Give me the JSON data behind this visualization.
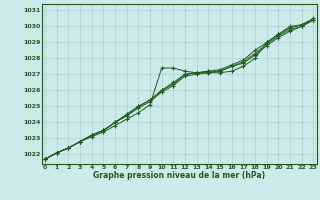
{
  "xlabel": "Graphe pression niveau de la mer (hPa)",
  "background_color": "#cceaea",
  "grid_color": "#b8d8d8",
  "line_color": "#1e5c1e",
  "xlim": [
    -0.3,
    23.3
  ],
  "ylim": [
    1021.4,
    1031.4
  ],
  "yticks": [
    1022,
    1023,
    1024,
    1025,
    1026,
    1027,
    1028,
    1029,
    1030,
    1031
  ],
  "xticks": [
    0,
    1,
    2,
    3,
    4,
    5,
    6,
    7,
    8,
    9,
    10,
    11,
    12,
    13,
    14,
    15,
    16,
    17,
    18,
    19,
    20,
    21,
    22,
    23
  ],
  "series": [
    [
      1021.7,
      1022.1,
      1022.4,
      1022.8,
      1023.1,
      1023.4,
      1023.8,
      1024.2,
      1024.6,
      1025.1,
      1027.4,
      1027.4,
      1027.2,
      1027.1,
      1027.1,
      1027.1,
      1027.2,
      1027.5,
      1028.0,
      1029.0,
      1029.5,
      1030.0,
      1030.1,
      1030.5
    ],
    [
      1021.7,
      1022.1,
      1022.4,
      1022.8,
      1023.2,
      1023.5,
      1024.0,
      1024.4,
      1024.9,
      1025.3,
      1025.9,
      1026.3,
      1026.9,
      1027.0,
      1027.1,
      1027.2,
      1027.5,
      1027.7,
      1028.2,
      1028.8,
      1029.3,
      1029.7,
      1030.0,
      1030.4
    ],
    [
      1021.7,
      1022.1,
      1022.4,
      1022.8,
      1023.2,
      1023.5,
      1024.0,
      1024.5,
      1025.0,
      1025.4,
      1026.0,
      1026.4,
      1027.0,
      1027.1,
      1027.2,
      1027.2,
      1027.5,
      1027.8,
      1028.3,
      1028.9,
      1029.4,
      1029.8,
      1030.0,
      1030.4
    ],
    [
      1021.7,
      1022.1,
      1022.4,
      1022.8,
      1023.2,
      1023.5,
      1024.0,
      1024.5,
      1025.0,
      1025.4,
      1026.0,
      1026.5,
      1027.0,
      1027.1,
      1027.2,
      1027.3,
      1027.6,
      1027.9,
      1028.5,
      1029.0,
      1029.5,
      1029.9,
      1030.1,
      1030.4
    ]
  ]
}
